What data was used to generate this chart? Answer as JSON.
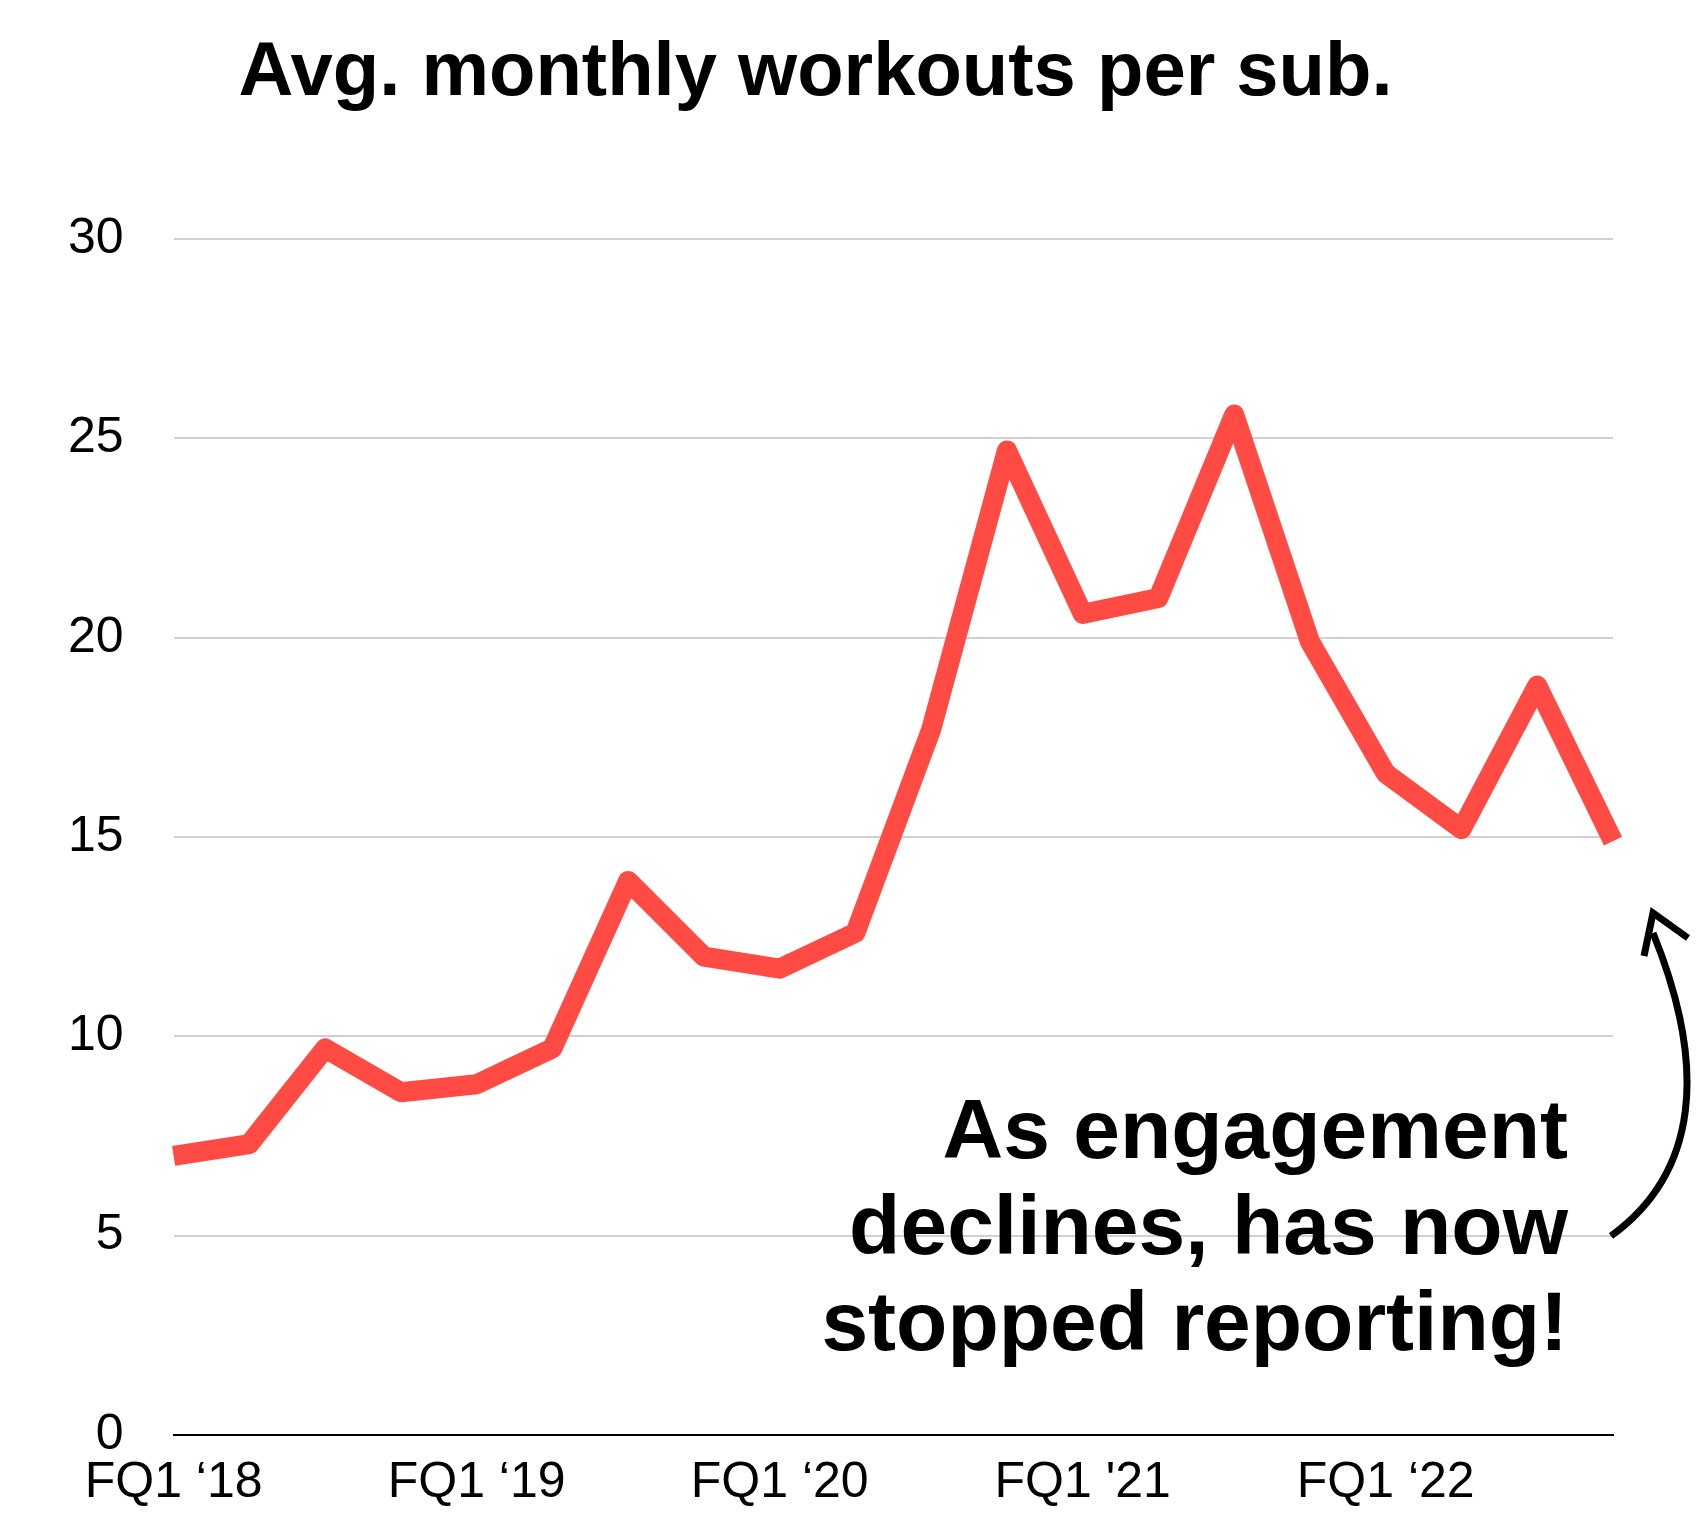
{
  "chart_data": {
    "type": "line",
    "title": "Avg. monthly workouts per sub.",
    "categories": [
      "FQ1 ‘18",
      null,
      null,
      null,
      "FQ1 ‘19",
      null,
      null,
      null,
      "FQ1 ‘20",
      null,
      null,
      null,
      "FQ1 '21",
      null,
      null,
      null,
      "FQ1 ‘22",
      null,
      null,
      null
    ],
    "series": [
      {
        "color": "#ff4b44",
        "values": [
          7.0,
          7.3,
          9.7,
          8.6,
          8.8,
          9.7,
          13.9,
          12.0,
          11.7,
          12.6,
          17.7,
          24.7,
          20.6,
          21.0,
          25.6,
          19.9,
          16.6,
          15.2,
          18.8,
          14.9
        ]
      }
    ],
    "ylim": [
      0,
      30
    ],
    "yticks": [
      0,
      5,
      10,
      15,
      20,
      25,
      30
    ],
    "grid": "y",
    "legend": false,
    "marker": "none",
    "line_style": "solid",
    "annotations": [
      "As engagement declines, has now stopped reporting!"
    ]
  }
}
